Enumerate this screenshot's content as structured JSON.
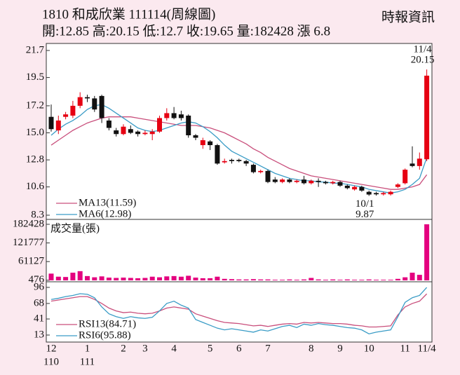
{
  "chart_data": {
    "type": "candlestick",
    "title": "1810  和成欣業 111114(周線圖)",
    "source": "時報資訊",
    "subtitle": "開:12.85 高:20.15 低:12.7 收:19.65 量:182428 漲 6.8",
    "categories": [
      "12",
      null,
      null,
      null,
      null,
      "1",
      null,
      null,
      null,
      null,
      "2",
      null,
      null,
      "3",
      null,
      null,
      null,
      "4",
      null,
      null,
      null,
      null,
      "5",
      null,
      null,
      null,
      "6",
      null,
      null,
      null,
      "7",
      null,
      null,
      null,
      null,
      null,
      "8",
      null,
      null,
      null,
      "9",
      null,
      null,
      null,
      "10",
      null,
      null,
      null,
      null,
      "11",
      null,
      null,
      "11/4"
    ],
    "year_labels": [
      "110",
      null,
      null,
      null,
      null,
      "111",
      null,
      null,
      null,
      null,
      null,
      null,
      null,
      null,
      null,
      null,
      null,
      null,
      null,
      null,
      null,
      null,
      null,
      null,
      null,
      null,
      null,
      null,
      null,
      null,
      null,
      null,
      null,
      null,
      null,
      null,
      null,
      null,
      null,
      null,
      null,
      null,
      null,
      null,
      null,
      null,
      null,
      null,
      null,
      null,
      null,
      null,
      null
    ],
    "open": [
      16.3,
      15.2,
      16.3,
      16.4,
      17.2,
      17.9,
      17.8,
      18.0,
      16.0,
      15.2,
      14.9,
      15.3,
      15.1,
      14.9,
      14.9,
      15.1,
      16.2,
      16.6,
      16.5,
      16.4,
      14.8,
      14.0,
      14.3,
      14.0,
      12.6,
      12.8,
      12.8,
      12.7,
      12.4,
      11.8,
      11.9,
      11.2,
      11.0,
      11.2,
      11.0,
      11.2,
      10.9,
      11.1,
      11.0,
      10.9,
      11.0,
      10.7,
      10.4,
      10.6,
      10.2,
      10.1,
      10.0,
      10.0,
      10.6,
      10.9,
      12.5,
      12.3,
      12.85
    ],
    "high": [
      17.3,
      16.4,
      16.7,
      17.6,
      18.3,
      18.1,
      18.0,
      18.1,
      16.2,
      15.4,
      15.7,
      15.6,
      15.2,
      15.2,
      15.3,
      16.4,
      17.0,
      17.1,
      16.8,
      16.5,
      14.9,
      14.6,
      14.4,
      14.1,
      12.9,
      12.9,
      12.9,
      12.8,
      12.5,
      12.0,
      12.0,
      11.4,
      11.3,
      11.3,
      11.2,
      11.5,
      11.2,
      11.3,
      11.1,
      11.1,
      11.1,
      10.8,
      10.7,
      10.7,
      10.3,
      10.2,
      10.2,
      10.3,
      10.9,
      12.1,
      13.9,
      13.4,
      20.15
    ],
    "low": [
      15.1,
      14.9,
      16.1,
      16.2,
      17.0,
      17.5,
      16.7,
      15.8,
      15.2,
      14.7,
      14.8,
      14.9,
      14.7,
      14.8,
      14.4,
      15.0,
      16.0,
      16.1,
      16.0,
      14.6,
      14.4,
      13.7,
      13.6,
      12.4,
      12.5,
      12.5,
      12.6,
      12.3,
      11.7,
      11.7,
      10.9,
      10.9,
      10.9,
      10.9,
      10.9,
      10.8,
      10.8,
      10.6,
      10.8,
      10.8,
      10.6,
      10.4,
      10.3,
      10.2,
      9.87,
      9.9,
      9.9,
      9.9,
      10.5,
      10.8,
      12.2,
      12.0,
      12.7
    ],
    "close": [
      15.3,
      16.0,
      16.5,
      17.2,
      17.9,
      17.8,
      16.9,
      16.2,
      15.4,
      14.9,
      15.5,
      15.0,
      14.9,
      15.0,
      15.1,
      16.2,
      16.6,
      16.2,
      16.2,
      14.8,
      14.6,
      14.4,
      14.0,
      12.5,
      12.7,
      12.7,
      12.7,
      12.5,
      11.8,
      11.9,
      11.0,
      11.0,
      11.2,
      11.0,
      11.1,
      10.9,
      11.1,
      11.0,
      10.9,
      11.0,
      10.7,
      10.5,
      10.6,
      10.3,
      9.98,
      10.0,
      10.1,
      10.2,
      10.8,
      12.0,
      12.3,
      12.9,
      19.65
    ],
    "up_color": "#e60012",
    "down_color": "#111111",
    "ylim": [
      8.3,
      21.7
    ],
    "yticks": [
      21.7,
      19.5,
      17.2,
      {
        "value": 15,
        "label": "15.0"
      },
      12.8,
      10.6,
      8.3
    ],
    "series": [
      {
        "name": "MA13(11.59)",
        "color": "#c94f7c",
        "values": [
          14.0,
          14.4,
          14.8,
          15.2,
          15.5,
          15.8,
          16.0,
          16.2,
          16.3,
          16.3,
          16.3,
          16.3,
          16.2,
          16.1,
          16.0,
          15.9,
          15.8,
          15.7,
          15.6,
          15.6,
          15.6,
          15.5,
          15.4,
          15.2,
          15.0,
          14.7,
          14.4,
          14.1,
          13.7,
          13.4,
          13.0,
          12.7,
          12.4,
          12.1,
          11.9,
          11.7,
          11.5,
          11.4,
          11.3,
          11.2,
          11.1,
          11.0,
          10.9,
          10.8,
          10.7,
          10.6,
          10.5,
          10.4,
          10.4,
          10.5,
          10.6,
          10.8,
          11.59
        ]
      },
      {
        "name": "MA6(12.98)",
        "color": "#3a9cc6",
        "values": [
          14.8,
          15.3,
          15.7,
          16.0,
          16.4,
          16.9,
          17.2,
          17.3,
          17.0,
          16.6,
          16.2,
          15.8,
          15.4,
          15.2,
          15.1,
          15.2,
          15.4,
          15.6,
          15.8,
          15.9,
          15.8,
          15.5,
          15.1,
          14.6,
          14.0,
          13.5,
          13.2,
          12.9,
          12.6,
          12.3,
          12.0,
          11.7,
          11.5,
          11.3,
          11.2,
          11.1,
          11.1,
          11.0,
          11.0,
          10.9,
          10.9,
          10.8,
          10.7,
          10.6,
          10.4,
          10.3,
          10.2,
          10.1,
          10.2,
          10.4,
          10.8,
          11.3,
          12.98
        ]
      }
    ],
    "annotations": [
      {
        "date": "11/4",
        "value": 20.15
      },
      {
        "date": "10/1",
        "value": 9.87
      }
    ],
    "volume": {
      "title": "成交量(張)",
      "color": "#e4007f",
      "ylim": [
        0,
        182428
      ],
      "yticks": [
        182428,
        121777,
        61127,
        476
      ],
      "values": [
        22000,
        12000,
        11000,
        25000,
        30000,
        14000,
        10000,
        13000,
        9000,
        8000,
        9000,
        8000,
        7000,
        8000,
        12000,
        10000,
        13000,
        14000,
        12000,
        15000,
        9000,
        7000,
        7000,
        12000,
        5000,
        4000,
        3000,
        3000,
        4000,
        3000,
        3000,
        2000,
        2000,
        3000,
        2000,
        3000,
        8000,
        3000,
        2000,
        3000,
        2000,
        3000,
        2000,
        2000,
        3000,
        2000,
        2000,
        2000,
        5000,
        10000,
        25000,
        18000,
        182428
      ]
    },
    "rsi": {
      "ylim": [
        13,
        96
      ],
      "yticks": [
        96,
        68,
        41,
        13
      ],
      "series": [
        {
          "name": "RSI13(84.71)",
          "color": "#c94f7c",
          "values": [
            72,
            74,
            76,
            78,
            80,
            80,
            75,
            68,
            60,
            55,
            52,
            53,
            51,
            50,
            51,
            55,
            60,
            62,
            60,
            58,
            50,
            46,
            42,
            38,
            35,
            34,
            33,
            31,
            29,
            30,
            28,
            30,
            32,
            33,
            32,
            35,
            34,
            35,
            34,
            33,
            33,
            32,
            30,
            29,
            27,
            27,
            28,
            29,
            48,
            62,
            68,
            72,
            84.71
          ]
        },
        {
          "name": "RSI6(95.88)",
          "color": "#3a9cc6",
          "values": [
            75,
            77,
            80,
            82,
            85,
            84,
            78,
            62,
            50,
            45,
            42,
            45,
            43,
            42,
            44,
            55,
            68,
            72,
            65,
            60,
            40,
            35,
            30,
            25,
            22,
            24,
            22,
            20,
            18,
            22,
            20,
            24,
            28,
            30,
            26,
            32,
            30,
            33,
            31,
            30,
            28,
            26,
            25,
            22,
            15,
            18,
            20,
            22,
            45,
            70,
            78,
            82,
            95.88
          ]
        }
      ]
    }
  }
}
